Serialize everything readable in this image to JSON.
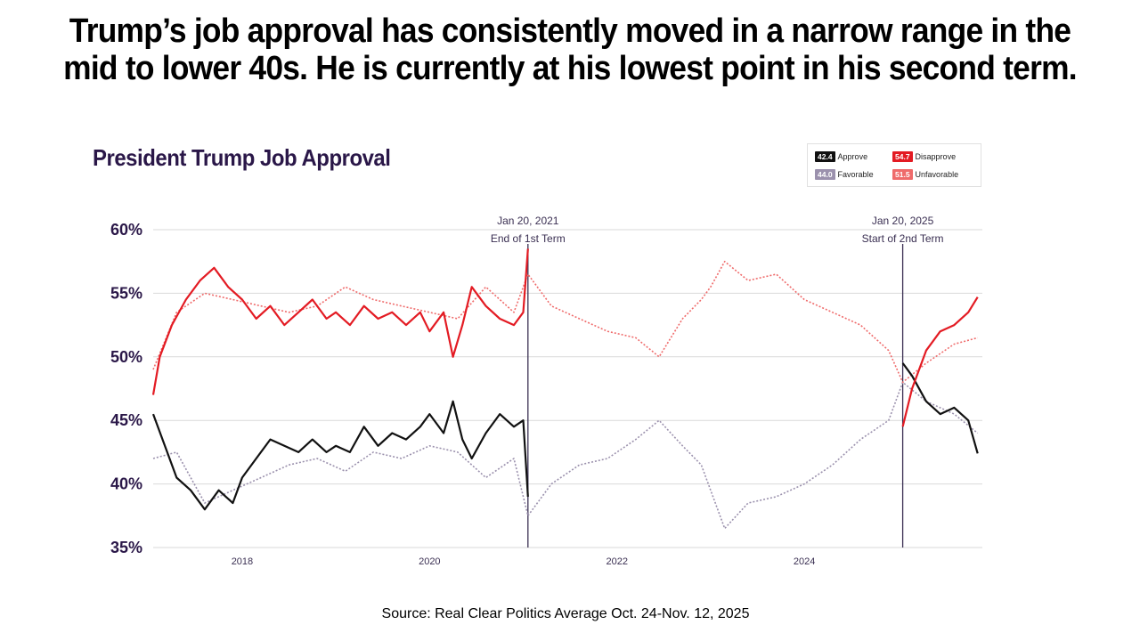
{
  "slide": {
    "title": "Trump’s job approval has consistently moved in a narrow range in the mid to lower 40s.  He is currently at his lowest point in his second term.",
    "source": "Source: Real Clear Politics Average Oct. 24-Nov. 12, 2025"
  },
  "legend": {
    "approve": {
      "value": "42.4",
      "label": "Approve",
      "color": "#111111"
    },
    "disapprove": {
      "value": "54.7",
      "label": "Disapprove",
      "color": "#e31b23"
    },
    "favorable": {
      "value": "44.0",
      "label": "Favorable",
      "color": "#9b91ad"
    },
    "unfavorable": {
      "value": "51.5",
      "label": "Unfavorable",
      "color": "#ef6b6b"
    }
  },
  "chart_data": {
    "type": "line",
    "title": "President Trump Job Approval",
    "ylim": [
      35,
      60
    ],
    "y_ticks": [
      35,
      40,
      45,
      50,
      55,
      60
    ],
    "y_tick_labels": [
      "35%",
      "40%",
      "45%",
      "50%",
      "55%",
      "60%"
    ],
    "xlim": [
      2017.05,
      2025.9
    ],
    "x_ticks": [
      2018,
      2020,
      2022,
      2024
    ],
    "x_tick_labels": [
      "2018",
      "2020",
      "2022",
      "2024"
    ],
    "annotations": [
      {
        "x": 2021.05,
        "line1": "Jan 20, 2021",
        "line2": "End of 1st Term"
      },
      {
        "x": 2025.05,
        "line1": "Jan 20, 2025",
        "line2": "Start of 2nd Term"
      }
    ],
    "series": [
      {
        "name": "Approve",
        "color": "#111111",
        "dash": false,
        "x": [
          2017.05,
          2017.15,
          2017.3,
          2017.45,
          2017.6,
          2017.75,
          2017.9,
          2018.0,
          2018.15,
          2018.3,
          2018.45,
          2018.6,
          2018.75,
          2018.9,
          2019.0,
          2019.15,
          2019.3,
          2019.45,
          2019.6,
          2019.75,
          2019.9,
          2020.0,
          2020.15,
          2020.25,
          2020.35,
          2020.45,
          2020.6,
          2020.75,
          2020.9,
          2021.0,
          2021.05,
          2025.05,
          2025.15,
          2025.3,
          2025.45,
          2025.6,
          2025.75,
          2025.85
        ],
        "y": [
          45.5,
          43.5,
          40.5,
          39.5,
          38.0,
          39.5,
          38.5,
          40.5,
          42.0,
          43.5,
          43.0,
          42.5,
          43.5,
          42.5,
          43.0,
          42.5,
          44.5,
          43.0,
          44.0,
          43.5,
          44.5,
          45.5,
          44.0,
          46.5,
          43.5,
          42.0,
          44.0,
          45.5,
          44.5,
          45.0,
          39.0,
          49.5,
          48.5,
          46.5,
          45.5,
          46.0,
          45.0,
          42.4
        ]
      },
      {
        "name": "Disapprove",
        "color": "#e31b23",
        "dash": false,
        "x": [
          2017.05,
          2017.12,
          2017.25,
          2017.4,
          2017.55,
          2017.7,
          2017.85,
          2018.0,
          2018.15,
          2018.3,
          2018.45,
          2018.6,
          2018.75,
          2018.9,
          2019.0,
          2019.15,
          2019.3,
          2019.45,
          2019.6,
          2019.75,
          2019.9,
          2020.0,
          2020.15,
          2020.25,
          2020.35,
          2020.45,
          2020.6,
          2020.75,
          2020.9,
          2021.0,
          2021.05,
          2025.05,
          2025.15,
          2025.3,
          2025.45,
          2025.6,
          2025.75,
          2025.85
        ],
        "y": [
          47.0,
          50.0,
          52.5,
          54.5,
          56.0,
          57.0,
          55.5,
          54.5,
          53.0,
          54.0,
          52.5,
          53.5,
          54.5,
          53.0,
          53.5,
          52.5,
          54.0,
          53.0,
          53.5,
          52.5,
          53.5,
          52.0,
          53.5,
          50.0,
          52.5,
          55.5,
          54.0,
          53.0,
          52.5,
          53.5,
          58.5,
          44.5,
          47.5,
          50.5,
          52.0,
          52.5,
          53.5,
          54.7
        ]
      },
      {
        "name": "Favorable",
        "color": "#9b91ad",
        "dash": true,
        "x": [
          2017.05,
          2017.3,
          2017.6,
          2017.9,
          2018.2,
          2018.5,
          2018.8,
          2019.1,
          2019.4,
          2019.7,
          2020.0,
          2020.3,
          2020.6,
          2020.9,
          2021.05,
          2021.3,
          2021.6,
          2021.9,
          2022.2,
          2022.45,
          2022.7,
          2022.9,
          2023.0,
          2023.15,
          2023.4,
          2023.7,
          2024.0,
          2024.3,
          2024.6,
          2024.9,
          2025.05,
          2025.3,
          2025.6,
          2025.85
        ],
        "y": [
          42.0,
          42.5,
          38.5,
          39.5,
          40.5,
          41.5,
          42.0,
          41.0,
          42.5,
          42.0,
          43.0,
          42.5,
          40.5,
          42.0,
          37.5,
          40.0,
          41.5,
          42.0,
          43.5,
          45.0,
          43.0,
          41.5,
          39.5,
          36.5,
          38.5,
          39.0,
          40.0,
          41.5,
          43.5,
          45.0,
          48.0,
          46.5,
          45.5,
          44.0
        ]
      },
      {
        "name": "Unfavorable",
        "color": "#ef6b6b",
        "dash": true,
        "x": [
          2017.05,
          2017.3,
          2017.6,
          2017.9,
          2018.2,
          2018.5,
          2018.8,
          2019.1,
          2019.4,
          2019.7,
          2020.0,
          2020.3,
          2020.6,
          2020.9,
          2021.05,
          2021.3,
          2021.6,
          2021.9,
          2022.2,
          2022.45,
          2022.7,
          2022.9,
          2023.0,
          2023.15,
          2023.4,
          2023.7,
          2024.0,
          2024.3,
          2024.6,
          2024.9,
          2025.05,
          2025.3,
          2025.6,
          2025.85
        ],
        "y": [
          49.0,
          53.5,
          55.0,
          54.5,
          54.0,
          53.5,
          54.0,
          55.5,
          54.5,
          54.0,
          53.5,
          53.0,
          55.5,
          53.5,
          56.5,
          54.0,
          53.0,
          52.0,
          51.5,
          50.0,
          53.0,
          54.5,
          55.5,
          57.5,
          56.0,
          56.5,
          54.5,
          53.5,
          52.5,
          50.5,
          48.0,
          49.5,
          51.0,
          51.5
        ]
      }
    ]
  }
}
